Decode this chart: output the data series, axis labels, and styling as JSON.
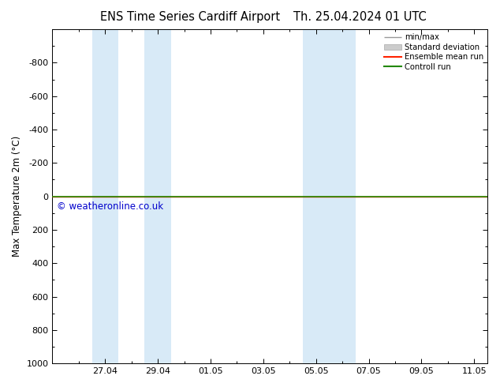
{
  "title_left": "ENS Time Series Cardiff Airport",
  "title_right": "Th. 25.04.2024 01 UTC",
  "ylabel": "Max Temperature 2m (°C)",
  "ylim": [
    1000,
    -1000
  ],
  "yticks": [
    -800,
    -600,
    -400,
    -200,
    0,
    200,
    400,
    600,
    800,
    1000
  ],
  "xlim": [
    0,
    16.5
  ],
  "xtick_labels": [
    "27.04",
    "29.04",
    "01.05",
    "03.05",
    "05.05",
    "07.05",
    "09.05",
    "11.05"
  ],
  "xtick_positions": [
    2,
    4,
    6,
    8,
    10,
    12,
    14,
    16
  ],
  "shaded_regions": [
    [
      1.5,
      2.5
    ],
    [
      3.5,
      4.5
    ],
    [
      9.5,
      10.5
    ],
    [
      10.5,
      11.5
    ]
  ],
  "shade_color": "#d8eaf7",
  "control_run_y": 0,
  "ensemble_mean_y": 0,
  "control_run_color": "#228800",
  "ensemble_mean_color": "#ff2200",
  "minmax_color": "#999999",
  "stddev_color": "#cccccc",
  "watermark": "© weatheronline.co.uk",
  "watermark_color": "#0000cc",
  "background_color": "#ffffff",
  "plot_background": "#ffffff",
  "legend_labels": [
    "min/max",
    "Standard deviation",
    "Ensemble mean run",
    "Controll run"
  ],
  "legend_colors": [
    "#999999",
    "#cccccc",
    "#ff2200",
    "#228800"
  ],
  "title_fontsize": 10.5,
  "tick_fontsize": 8,
  "axis_label_fontsize": 8.5
}
